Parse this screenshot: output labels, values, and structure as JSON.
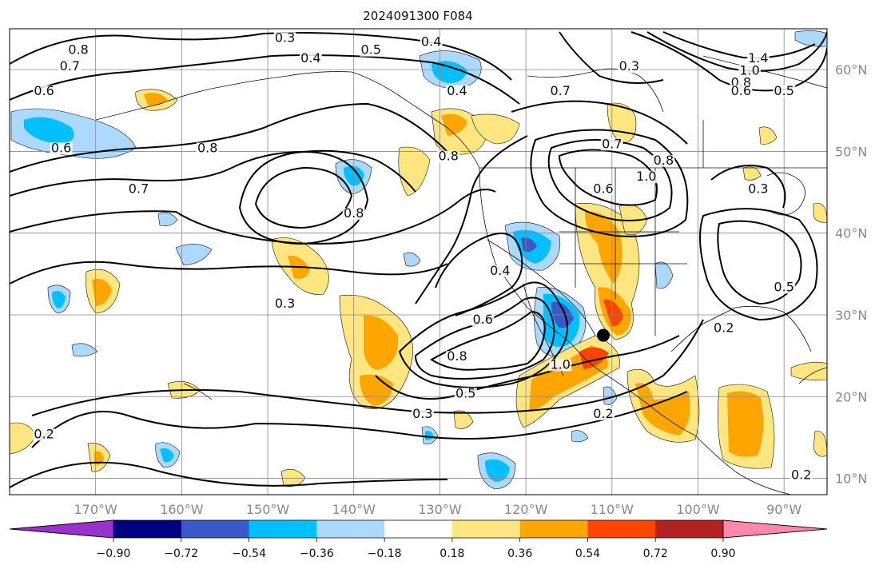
{
  "title": "2024091300 F084",
  "map": {
    "lon_range": [
      -180,
      -85
    ],
    "lat_range": [
      8,
      65
    ],
    "lon_ticks": [
      {
        "value": -170,
        "label": "170°W"
      },
      {
        "value": -160,
        "label": "160°W"
      },
      {
        "value": -150,
        "label": "150°W"
      },
      {
        "value": -140,
        "label": "140°W"
      },
      {
        "value": -130,
        "label": "130°W"
      },
      {
        "value": -120,
        "label": "120°W"
      },
      {
        "value": -110,
        "label": "110°W"
      },
      {
        "value": -100,
        "label": "100°W"
      },
      {
        "value": -90,
        "label": "90°W"
      }
    ],
    "lat_ticks": [
      {
        "value": 10,
        "label": "10°N"
      },
      {
        "value": 20,
        "label": "20°N"
      },
      {
        "value": 30,
        "label": "30°N"
      },
      {
        "value": 40,
        "label": "40°N"
      },
      {
        "value": 50,
        "label": "50°N"
      },
      {
        "value": 60,
        "label": "60°N"
      }
    ],
    "gridlines": true,
    "marker": {
      "lon": -111,
      "lat": 27.5
    },
    "contour_labels": [
      {
        "text": "0.3",
        "lon": -148,
        "lat": 63.5
      },
      {
        "text": "0.8",
        "lon": -172,
        "lat": 62
      },
      {
        "text": "0.7",
        "lon": -173,
        "lat": 60
      },
      {
        "text": "0.4",
        "lon": -145,
        "lat": 61
      },
      {
        "text": "0.5",
        "lon": -138,
        "lat": 62
      },
      {
        "text": "0.6",
        "lon": -176,
        "lat": 57
      },
      {
        "text": "0.6",
        "lon": -174,
        "lat": 50
      },
      {
        "text": "0.8",
        "lon": -157,
        "lat": 50
      },
      {
        "text": "0.7",
        "lon": -165,
        "lat": 45
      },
      {
        "text": "0.8",
        "lon": -140,
        "lat": 42
      },
      {
        "text": "0.8",
        "lon": -129,
        "lat": 49
      },
      {
        "text": "0.4",
        "lon": -131,
        "lat": 63
      },
      {
        "text": "0.4",
        "lon": -128,
        "lat": 57
      },
      {
        "text": "0.7",
        "lon": -116,
        "lat": 57
      },
      {
        "text": "0.3",
        "lon": -108,
        "lat": 60
      },
      {
        "text": "1.4",
        "lon": -93,
        "lat": 61
      },
      {
        "text": "1.0",
        "lon": -94,
        "lat": 59.5
      },
      {
        "text": "0.8",
        "lon": -95,
        "lat": 58
      },
      {
        "text": "0.6",
        "lon": -95,
        "lat": 57
      },
      {
        "text": "0.5",
        "lon": -90,
        "lat": 57
      },
      {
        "text": "0.7",
        "lon": -110,
        "lat": 50.5
      },
      {
        "text": "0.8",
        "lon": -104,
        "lat": 48.5
      },
      {
        "text": "1.0",
        "lon": -106,
        "lat": 46.5
      },
      {
        "text": "0.6",
        "lon": -111,
        "lat": 45
      },
      {
        "text": "0.3",
        "lon": -93,
        "lat": 45
      },
      {
        "text": "0.4",
        "lon": -123,
        "lat": 35
      },
      {
        "text": "0.3",
        "lon": -148,
        "lat": 31
      },
      {
        "text": "0.6",
        "lon": -125,
        "lat": 29
      },
      {
        "text": "0.8",
        "lon": -128,
        "lat": 24.5
      },
      {
        "text": "1.0",
        "lon": -116,
        "lat": 23.5
      },
      {
        "text": "0.5",
        "lon": -127,
        "lat": 20
      },
      {
        "text": "0.3",
        "lon": -132,
        "lat": 17.5
      },
      {
        "text": "0.2",
        "lon": -111,
        "lat": 17.5
      },
      {
        "text": "0.2",
        "lon": -97,
        "lat": 28
      },
      {
        "text": "0.5",
        "lon": -90,
        "lat": 33
      },
      {
        "text": "0.2",
        "lon": -176,
        "lat": 15
      },
      {
        "text": "0.2",
        "lon": -88,
        "lat": 10
      }
    ]
  },
  "colorbar": {
    "colors": [
      "#9932cc",
      "#000080",
      "#3b58c8",
      "#00bfff",
      "#add8ff",
      "#ffffff",
      "#ffe680",
      "#ffa500",
      "#ff4500",
      "#b22222",
      "#ff88aa"
    ],
    "tick_labels": [
      "−0.90",
      "−0.72",
      "−0.54",
      "−0.36",
      "−0.18",
      "0.18",
      "0.36",
      "0.54",
      "0.72",
      "0.90"
    ]
  }
}
